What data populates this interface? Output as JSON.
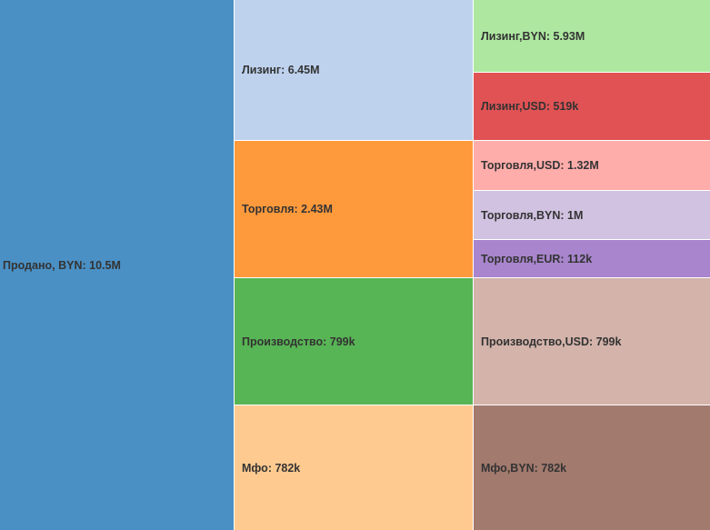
{
  "chart_data": {
    "type": "icicle",
    "nodes": [
      {
        "id": "root",
        "label": "Продано, BYN: 10.5M",
        "value": 10.5,
        "unit": "M",
        "depth": 0,
        "parent": null,
        "color": "#4a90c4"
      },
      {
        "id": "leasing",
        "label": "Лизинг: 6.45M",
        "value": 6.45,
        "depth": 1,
        "parent": "root",
        "color": "#bed2ee"
      },
      {
        "id": "trade",
        "label": "Торговля: 2.43M",
        "value": 2.43,
        "depth": 1,
        "parent": "root",
        "color": "#ff9a3c"
      },
      {
        "id": "prod",
        "label": "Производство: 799k",
        "value": 0.799,
        "depth": 1,
        "parent": "root",
        "color": "#58b555"
      },
      {
        "id": "mfo",
        "label": "Мфо: 782k",
        "value": 0.782,
        "depth": 1,
        "parent": "root",
        "color": "#ffca90"
      },
      {
        "id": "leasing_byn",
        "label": "Лизинг,BYN: 5.93M",
        "value": 5.93,
        "depth": 2,
        "parent": "leasing",
        "color": "#ade7a0"
      },
      {
        "id": "leasing_usd",
        "label": "Лизинг,USD: 519k",
        "value": 0.519,
        "depth": 2,
        "parent": "leasing",
        "color": "#e05254"
      },
      {
        "id": "trade_usd",
        "label": "Торговля,USD: 1.32M",
        "value": 1.32,
        "depth": 2,
        "parent": "trade",
        "color": "#ffadab"
      },
      {
        "id": "trade_byn",
        "label": "Торговля,BYN: 1M",
        "value": 1.0,
        "depth": 2,
        "parent": "trade",
        "color": "#d0c2e0"
      },
      {
        "id": "trade_eur",
        "label": "Торговля,EUR: 112k",
        "value": 0.112,
        "depth": 2,
        "parent": "trade",
        "color": "#a885cc"
      },
      {
        "id": "prod_usd",
        "label": "Производство,USD: 799k",
        "value": 0.799,
        "depth": 2,
        "parent": "prod",
        "color": "#d3b3aa"
      },
      {
        "id": "mfo_byn",
        "label": "Мфо,BYN: 782k",
        "value": 0.782,
        "depth": 2,
        "parent": "mfo",
        "color": "#a27a6e"
      }
    ]
  }
}
